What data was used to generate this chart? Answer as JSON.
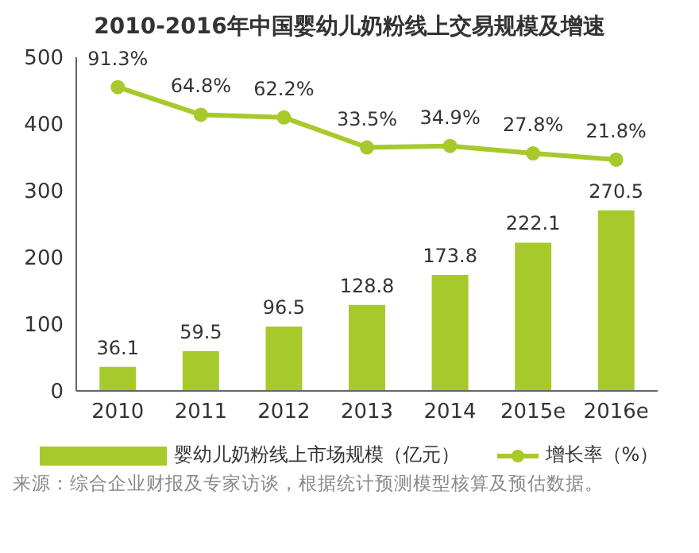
{
  "chart_data": {
    "type": "bar",
    "title": "2010-2016年中国婴幼儿奶粉线上交易规模及增速",
    "categories": [
      "2010",
      "2011",
      "2012",
      "2013",
      "2014",
      "2015e",
      "2016e"
    ],
    "series": [
      {
        "name": "婴幼儿奶粉线上市场规模（亿元）",
        "color": "#a7c92c",
        "values": [
          36.1,
          59.5,
          96.5,
          128.8,
          173.8,
          222.1,
          270.5
        ],
        "value_labels": [
          "36.1",
          "59.5",
          "96.5",
          "128.8",
          "173.8",
          "222.1",
          "270.5"
        ]
      },
      {
        "name": "增长率（%）",
        "type": "line",
        "axis": "y2",
        "color": "#a7c92c",
        "values": [
          91.3,
          64.8,
          62.2,
          33.5,
          34.9,
          27.8,
          21.8
        ],
        "value_labels": [
          "91.3%",
          "64.8%",
          "62.2%",
          "33.5%",
          "34.9%",
          "27.8%",
          "21.8%"
        ]
      }
    ],
    "ylim": [
      0,
      500
    ],
    "yticks": [
      0,
      100,
      200,
      300,
      400,
      500
    ],
    "y2lim": [
      -200,
      120
    ],
    "grid": false,
    "legend": "bottom",
    "marker": "circle",
    "annotations": [
      "来源：综合企业财报及专家访谈，根据统计预测模型核算及预估数据。"
    ]
  }
}
